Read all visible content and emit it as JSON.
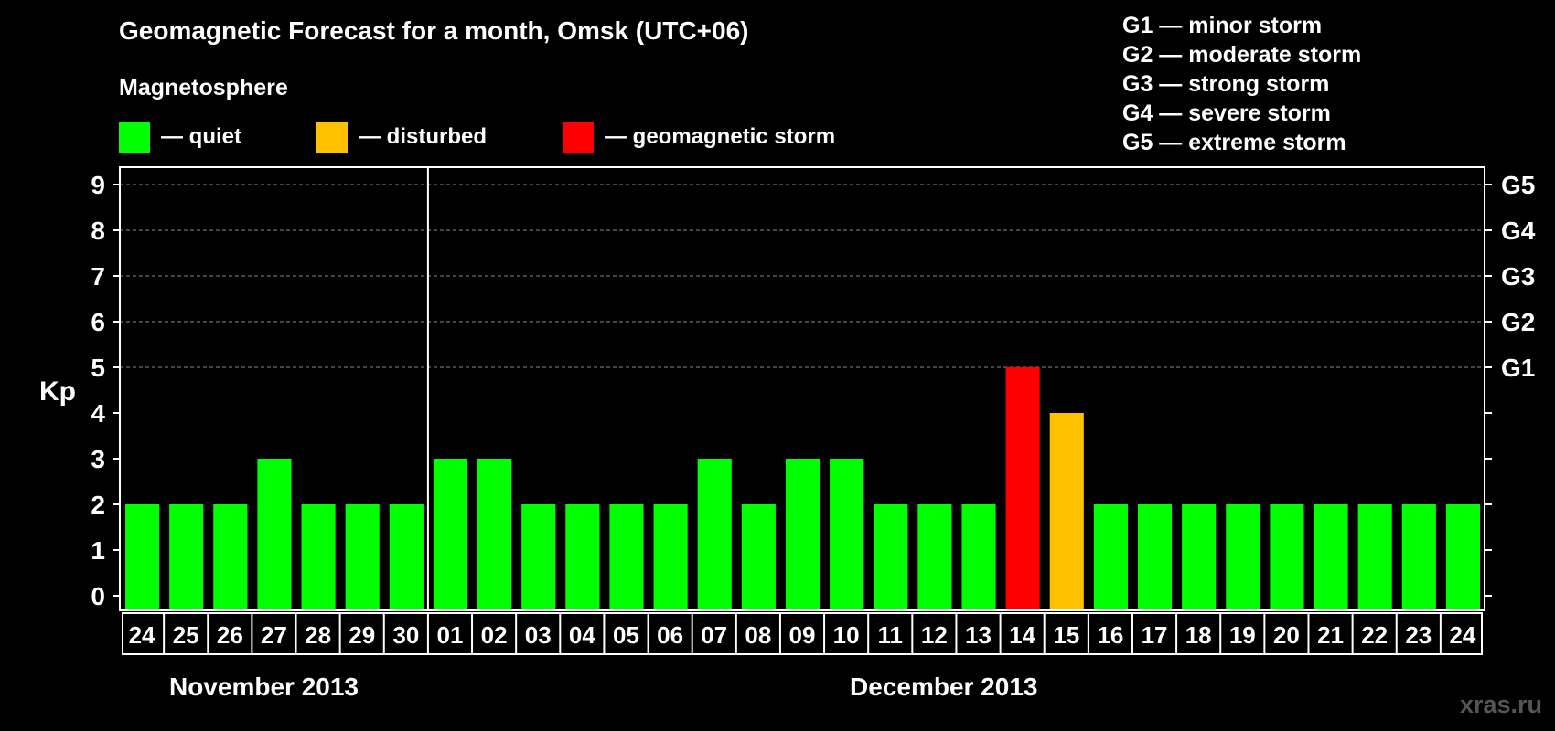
{
  "header": {
    "title": "Geomagnetic Forecast for a month, Omsk (UTC+06)",
    "subtitle": "Magnetosphere"
  },
  "legend": [
    {
      "label": "— quiet",
      "color": "#00ff00"
    },
    {
      "label": "— disturbed",
      "color": "#ffc000"
    },
    {
      "label": "— geomagnetic storm",
      "color": "#ff0000"
    }
  ],
  "storm_levels": [
    "G1 — minor storm",
    "G2 — moderate storm",
    "G3 — strong storm",
    "G4 — severe storm",
    "G5 — extreme storm"
  ],
  "months": {
    "first": "November 2013",
    "second": "December 2013"
  },
  "watermark": "xras.ru",
  "colors": {
    "quiet": "#00ff00",
    "disturbed": "#ffc000",
    "storm": "#ff0000",
    "background": "#000000"
  },
  "chart_data": {
    "type": "bar",
    "title": "Geomagnetic Forecast for a month, Omsk (UTC+06)",
    "ylabel": "Kp",
    "ylim": [
      0,
      9
    ],
    "yticks": [
      0,
      1,
      2,
      3,
      4,
      5,
      6,
      7,
      8,
      9
    ],
    "right_axis_labels": [
      {
        "value": 5,
        "label": "G1"
      },
      {
        "value": 6,
        "label": "G2"
      },
      {
        "value": 7,
        "label": "G3"
      },
      {
        "value": 8,
        "label": "G4"
      },
      {
        "value": 9,
        "label": "G5"
      }
    ],
    "categories": [
      "24",
      "25",
      "26",
      "27",
      "28",
      "29",
      "30",
      "01",
      "02",
      "03",
      "04",
      "05",
      "06",
      "07",
      "08",
      "09",
      "10",
      "11",
      "12",
      "13",
      "14",
      "15",
      "16",
      "17",
      "18",
      "19",
      "20",
      "21",
      "22",
      "23",
      "24"
    ],
    "values": [
      2,
      2,
      2,
      3,
      2,
      2,
      2,
      3,
      3,
      2,
      2,
      2,
      2,
      3,
      2,
      3,
      3,
      2,
      2,
      2,
      5,
      4,
      2,
      2,
      2,
      2,
      2,
      2,
      2,
      2,
      2
    ],
    "status": [
      "quiet",
      "quiet",
      "quiet",
      "quiet",
      "quiet",
      "quiet",
      "quiet",
      "quiet",
      "quiet",
      "quiet",
      "quiet",
      "quiet",
      "quiet",
      "quiet",
      "quiet",
      "quiet",
      "quiet",
      "quiet",
      "quiet",
      "quiet",
      "storm",
      "disturbed",
      "quiet",
      "quiet",
      "quiet",
      "quiet",
      "quiet",
      "quiet",
      "quiet",
      "quiet",
      "quiet"
    ],
    "month_boundary_after_index": 6
  }
}
